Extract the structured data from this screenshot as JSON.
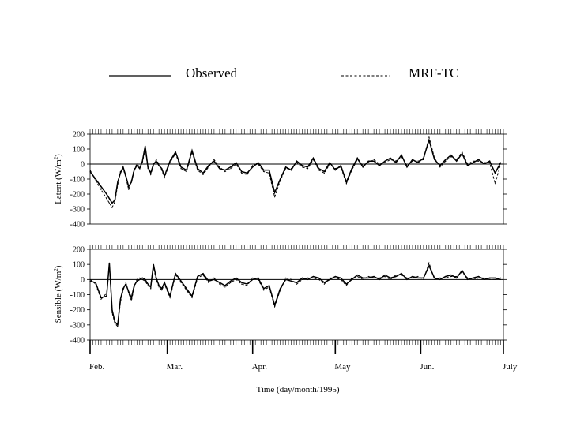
{
  "chart_data": [
    {
      "type": "line",
      "ylabel": "Latent (W/m²)",
      "ylabel_main": "Latent (W/m",
      "ylabel_sup": "2",
      "ylabel_end": ")",
      "ylim": [
        -400,
        200
      ],
      "yticks": [
        200,
        100,
        0,
        -100,
        -200,
        -300,
        -400
      ],
      "reference_line": 0,
      "x_unit": "day of 1995",
      "series": [
        {
          "name": "Observed",
          "style": "solid",
          "x": [
            1,
            3,
            5,
            7,
            8,
            9,
            10,
            11,
            12,
            13,
            14,
            15,
            16,
            17,
            18,
            19,
            20,
            21,
            22,
            23,
            24,
            25,
            26,
            27,
            28,
            30,
            32,
            34,
            36,
            38,
            40,
            42,
            44,
            46,
            48,
            50,
            52,
            54,
            56,
            58,
            60,
            62,
            64,
            66,
            68,
            70,
            72,
            74,
            76,
            78,
            80,
            82,
            84,
            86,
            88,
            90,
            92,
            94,
            96,
            98,
            100,
            102,
            104,
            106,
            108,
            110,
            112,
            114,
            116,
            118,
            120,
            122,
            124,
            126,
            128,
            130,
            132,
            134,
            136,
            138,
            140,
            142,
            144,
            146,
            148,
            150
          ],
          "values": [
            -50,
            -100,
            -150,
            -200,
            -230,
            -260,
            -240,
            -120,
            -60,
            -20,
            -80,
            -150,
            -120,
            -40,
            -10,
            -30,
            20,
            120,
            -20,
            -60,
            0,
            20,
            -10,
            -30,
            -80,
            20,
            80,
            -20,
            -40,
            90,
            -30,
            -60,
            -10,
            20,
            -30,
            -40,
            -20,
            10,
            -50,
            -60,
            -20,
            10,
            -40,
            -40,
            -190,
            -100,
            -20,
            -40,
            20,
            -10,
            -20,
            40,
            -30,
            -50,
            10,
            -40,
            -10,
            -120,
            -30,
            40,
            -20,
            20,
            20,
            -10,
            20,
            40,
            10,
            60,
            -20,
            30,
            10,
            40,
            160,
            30,
            -10,
            30,
            60,
            20,
            70,
            -10,
            10,
            30,
            0,
            20,
            -60,
            10
          ]
        },
        {
          "name": "MRF-TC",
          "style": "dashed",
          "x": [
            1,
            3,
            5,
            7,
            8,
            9,
            10,
            11,
            12,
            13,
            14,
            15,
            16,
            17,
            18,
            19,
            20,
            21,
            22,
            23,
            24,
            25,
            26,
            27,
            28,
            30,
            32,
            34,
            36,
            38,
            40,
            42,
            44,
            46,
            48,
            50,
            52,
            54,
            56,
            58,
            60,
            62,
            64,
            66,
            68,
            70,
            72,
            74,
            76,
            78,
            80,
            82,
            84,
            86,
            88,
            90,
            92,
            94,
            96,
            98,
            100,
            102,
            104,
            106,
            108,
            110,
            112,
            114,
            116,
            118,
            120,
            122,
            124,
            126,
            128,
            130,
            132,
            134,
            136,
            138,
            140,
            142,
            144,
            146,
            148,
            150
          ],
          "values": [
            -40,
            -110,
            -170,
            -230,
            -260,
            -290,
            -250,
            -140,
            -50,
            -30,
            -90,
            -170,
            -110,
            -30,
            0,
            -20,
            10,
            100,
            -30,
            -70,
            -10,
            30,
            0,
            -40,
            -90,
            10,
            70,
            -30,
            -50,
            80,
            -40,
            -70,
            -20,
            30,
            -20,
            -50,
            -30,
            0,
            -60,
            -70,
            -10,
            0,
            -50,
            -60,
            -220,
            -110,
            -30,
            -30,
            10,
            -20,
            -30,
            30,
            -40,
            -60,
            0,
            -30,
            -20,
            -130,
            -40,
            30,
            -10,
            10,
            30,
            0,
            10,
            30,
            20,
            50,
            -10,
            20,
            20,
            30,
            180,
            40,
            -20,
            20,
            50,
            30,
            80,
            0,
            20,
            20,
            10,
            10,
            -130,
            0
          ]
        }
      ]
    },
    {
      "type": "line",
      "ylabel": "Sensible (W/m²)",
      "ylabel_main": "Sensible (W/m",
      "ylabel_sup": "2",
      "ylabel_end": ")",
      "ylim": [
        -400,
        200
      ],
      "yticks": [
        200,
        100,
        0,
        -100,
        -200,
        -300,
        -400
      ],
      "reference_line": 0,
      "x_unit": "day of 1995",
      "series": [
        {
          "name": "Observed",
          "style": "solid",
          "x": [
            1,
            3,
            5,
            7,
            8,
            9,
            10,
            11,
            12,
            13,
            14,
            15,
            16,
            17,
            18,
            19,
            20,
            21,
            22,
            23,
            24,
            25,
            26,
            27,
            28,
            30,
            32,
            34,
            36,
            38,
            40,
            42,
            44,
            46,
            48,
            50,
            52,
            54,
            56,
            58,
            60,
            62,
            64,
            66,
            68,
            70,
            72,
            74,
            76,
            78,
            80,
            82,
            84,
            86,
            88,
            90,
            92,
            94,
            96,
            98,
            100,
            102,
            104,
            106,
            108,
            110,
            112,
            114,
            116,
            118,
            120,
            122,
            124,
            126,
            128,
            130,
            132,
            134,
            136,
            138,
            140,
            142,
            144,
            146,
            148,
            150
          ],
          "values": [
            -10,
            -20,
            -120,
            -110,
            110,
            -200,
            -280,
            -300,
            -130,
            -60,
            -30,
            -80,
            -120,
            -40,
            -10,
            0,
            10,
            0,
            -30,
            -50,
            100,
            10,
            -40,
            -60,
            -20,
            -110,
            40,
            -10,
            -60,
            -110,
            20,
            40,
            -10,
            0,
            -20,
            -40,
            -10,
            10,
            -20,
            -30,
            0,
            10,
            -60,
            -40,
            -170,
            -60,
            0,
            -10,
            -20,
            10,
            0,
            20,
            10,
            -20,
            0,
            20,
            10,
            -30,
            0,
            30,
            10,
            10,
            20,
            0,
            30,
            10,
            20,
            40,
            0,
            20,
            10,
            10,
            90,
            10,
            0,
            20,
            30,
            10,
            60,
            0,
            10,
            20,
            0,
            10,
            10,
            0
          ]
        },
        {
          "name": "MRF-TC",
          "style": "dashed",
          "x": [
            1,
            3,
            5,
            7,
            8,
            9,
            10,
            11,
            12,
            13,
            14,
            15,
            16,
            17,
            18,
            19,
            20,
            21,
            22,
            23,
            24,
            25,
            26,
            27,
            28,
            30,
            32,
            34,
            36,
            38,
            40,
            42,
            44,
            46,
            48,
            50,
            52,
            54,
            56,
            58,
            60,
            62,
            64,
            66,
            68,
            70,
            72,
            74,
            76,
            78,
            80,
            82,
            84,
            86,
            88,
            90,
            92,
            94,
            96,
            98,
            100,
            102,
            104,
            106,
            108,
            110,
            112,
            114,
            116,
            118,
            120,
            122,
            124,
            126,
            128,
            130,
            132,
            134,
            136,
            138,
            140,
            142,
            144,
            146,
            148,
            150
          ],
          "values": [
            0,
            -30,
            -130,
            -90,
            90,
            -220,
            -290,
            -310,
            -150,
            -70,
            -20,
            -90,
            -140,
            -50,
            0,
            10,
            0,
            -10,
            -40,
            -60,
            80,
            0,
            -50,
            -70,
            -30,
            -120,
            30,
            -20,
            -70,
            -120,
            10,
            30,
            -20,
            10,
            -30,
            -50,
            -20,
            0,
            -30,
            -40,
            10,
            0,
            -70,
            -50,
            -180,
            -70,
            10,
            0,
            -30,
            0,
            10,
            10,
            0,
            -30,
            10,
            10,
            0,
            -40,
            10,
            20,
            0,
            20,
            10,
            10,
            20,
            0,
            30,
            30,
            10,
            10,
            20,
            0,
            110,
            0,
            10,
            10,
            20,
            20,
            50,
            10,
            0,
            10,
            10,
            0,
            0,
            10
          ]
        }
      ]
    }
  ],
  "legend": {
    "entries": [
      {
        "name": "Observed",
        "style": "solid"
      },
      {
        "name": "MRF-TC",
        "style": "dashed"
      }
    ]
  },
  "x_axis": {
    "xlabel": "Time (day/month/1995)",
    "months": [
      {
        "label": "Feb.",
        "day": 1
      },
      {
        "label": "Mar.",
        "day": 29
      },
      {
        "label": "Apr.",
        "day": 60
      },
      {
        "label": "May",
        "day": 90
      },
      {
        "label": "Jun.",
        "day": 121
      },
      {
        "label": "July",
        "day": 151
      }
    ],
    "xlim": [
      1,
      151
    ]
  }
}
